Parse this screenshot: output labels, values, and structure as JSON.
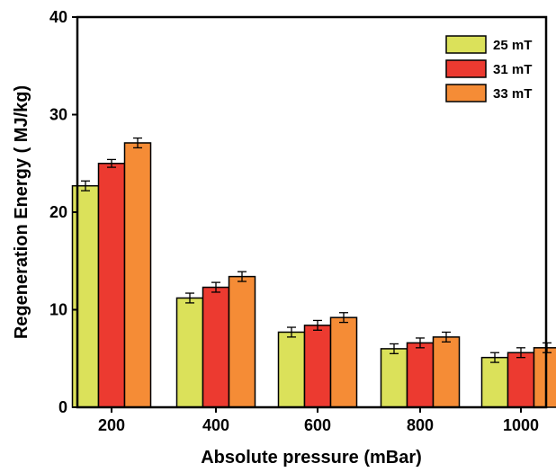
{
  "chart_data": {
    "type": "bar",
    "title": "",
    "xlabel": "Absolute pressure (mBar)",
    "ylabel": "Regeneration Energy ( MJ/kg)",
    "ylim": [
      0,
      40
    ],
    "yticks": [
      "0",
      "10",
      "20",
      "30",
      "40"
    ],
    "categories": [
      "200",
      "400",
      "600",
      "800",
      "1000"
    ],
    "series": [
      {
        "name": "25 mT",
        "color": "#dbe15a",
        "values": [
          22.7,
          11.2,
          7.7,
          6.0,
          5.1
        ],
        "errors": [
          0.5,
          0.5,
          0.5,
          0.5,
          0.5
        ]
      },
      {
        "name": "31 mT",
        "color": "#ec3a30",
        "values": [
          25.0,
          12.3,
          8.4,
          6.6,
          5.6
        ],
        "errors": [
          0.4,
          0.5,
          0.5,
          0.5,
          0.5
        ]
      },
      {
        "name": "33 mT",
        "color": "#f58c36",
        "values": [
          27.1,
          13.4,
          9.2,
          7.2,
          6.1
        ],
        "errors": [
          0.5,
          0.5,
          0.5,
          0.5,
          0.5
        ]
      }
    ],
    "legend_position": "top-right",
    "grid": false,
    "error_bars": true
  }
}
